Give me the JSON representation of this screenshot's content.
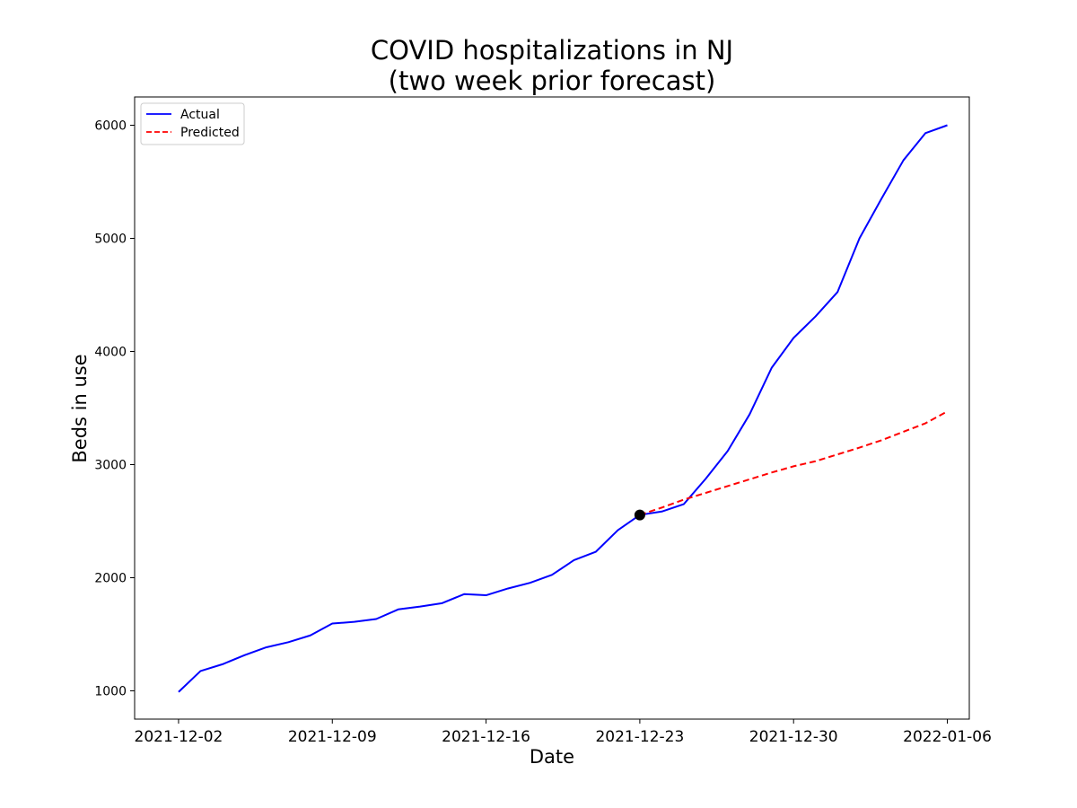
{
  "chart_data": {
    "type": "line",
    "title": "COVID hospitalizations in NJ",
    "subtitle": "(two week prior forecast)",
    "xlabel": "Date",
    "ylabel": "Beds in use",
    "x_start": "2021-12-02",
    "x_end": "2022-01-06",
    "xlim": [
      "2021-11-30",
      "2022-01-07"
    ],
    "ylim": [
      750,
      6250
    ],
    "x_ticks": [
      "2021-12-02",
      "2021-12-09",
      "2021-12-16",
      "2021-12-23",
      "2021-12-30",
      "2022-01-06"
    ],
    "y_ticks": [
      1000,
      2000,
      3000,
      4000,
      5000,
      6000
    ],
    "grid": false,
    "legend_position": "top-left",
    "series": [
      {
        "name": "Actual",
        "color": "#0000ff",
        "style": "solid",
        "x": [
          "2021-12-02",
          "2021-12-03",
          "2021-12-04",
          "2021-12-05",
          "2021-12-06",
          "2021-12-07",
          "2021-12-08",
          "2021-12-09",
          "2021-12-10",
          "2021-12-11",
          "2021-12-12",
          "2021-12-13",
          "2021-12-14",
          "2021-12-15",
          "2021-12-16",
          "2021-12-17",
          "2021-12-18",
          "2021-12-19",
          "2021-12-20",
          "2021-12-21",
          "2021-12-22",
          "2021-12-23",
          "2021-12-24",
          "2021-12-25",
          "2021-12-26",
          "2021-12-27",
          "2021-12-28",
          "2021-12-29",
          "2021-12-30",
          "2021-12-31",
          "2022-01-01",
          "2022-01-02",
          "2022-01-03",
          "2022-01-04",
          "2022-01-05",
          "2022-01-06"
        ],
        "values": [
          990,
          1175,
          1235,
          1315,
          1385,
          1430,
          1490,
          1595,
          1610,
          1635,
          1720,
          1745,
          1775,
          1855,
          1845,
          1905,
          1955,
          2025,
          2155,
          2230,
          2420,
          2555,
          2585,
          2650,
          2875,
          3120,
          3445,
          3855,
          4120,
          4310,
          4525,
          5000,
          5350,
          5690,
          5930,
          6000
        ]
      },
      {
        "name": "Predicted",
        "color": "#ff0000",
        "style": "dashed",
        "x": [
          "2021-12-23",
          "2021-12-24",
          "2021-12-25",
          "2021-12-26",
          "2021-12-27",
          "2021-12-28",
          "2021-12-29",
          "2021-12-30",
          "2021-12-31",
          "2022-01-01",
          "2022-01-02",
          "2022-01-03",
          "2022-01-04",
          "2022-01-05",
          "2022-01-06"
        ],
        "values": [
          2555,
          2620,
          2690,
          2750,
          2810,
          2870,
          2930,
          2985,
          3030,
          3090,
          3150,
          3215,
          3290,
          3365,
          3470
        ]
      }
    ],
    "marker": {
      "x": "2021-12-23",
      "y": 2555,
      "color": "#000000"
    }
  }
}
